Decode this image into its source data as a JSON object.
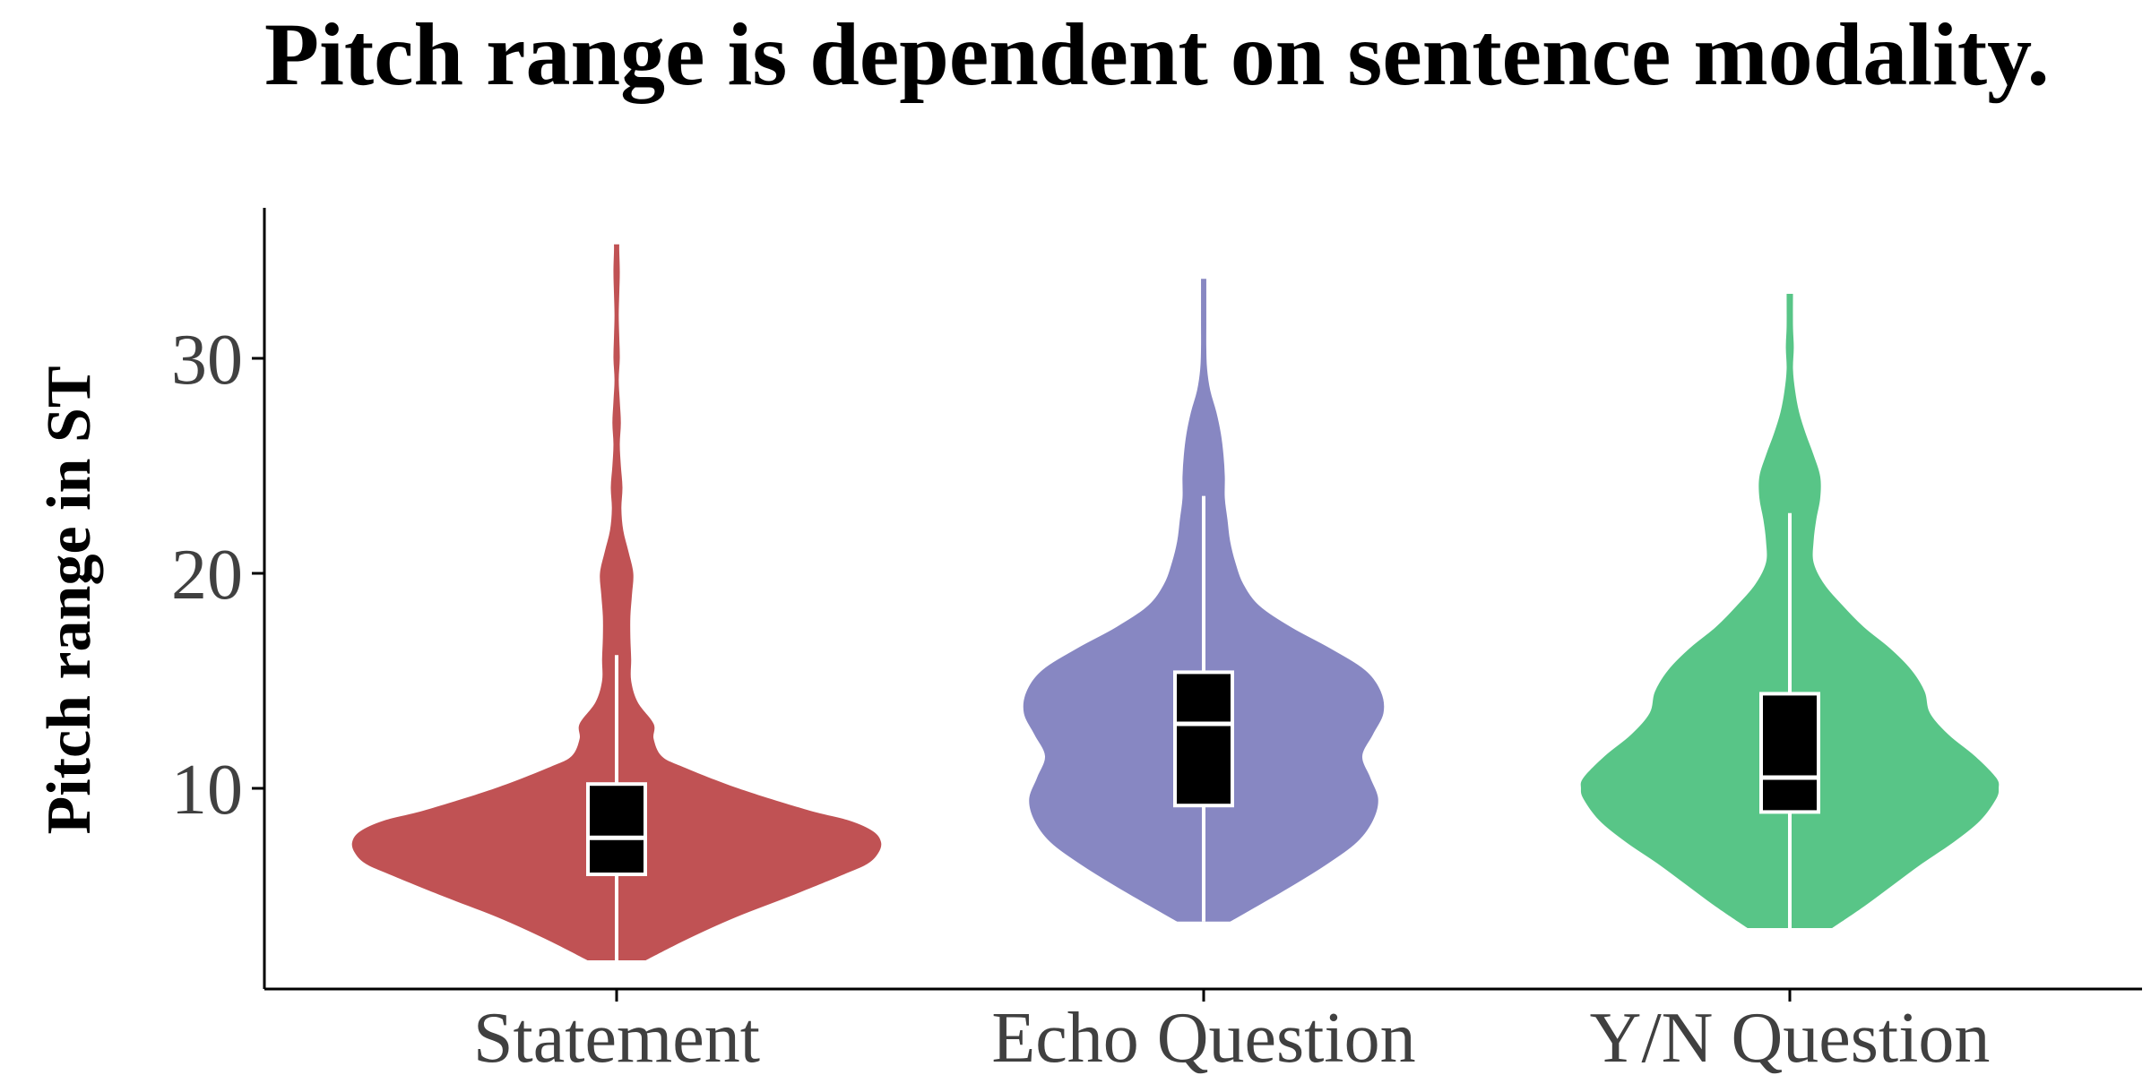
{
  "chart_data": {
    "type": "violin",
    "title": "Pitch range is dependent on sentence modality.",
    "xlabel": "",
    "ylabel": "Pitch range in ST",
    "ylim": [
      0,
      36
    ],
    "yticks": [
      10,
      20,
      30
    ],
    "grid": false,
    "legend": "none",
    "categories": [
      "Statement",
      "Echo Question",
      "Y/N Question"
    ],
    "colors": [
      "#c05254",
      "#8787c2",
      "#58c587"
    ],
    "box_color": "#000000",
    "box_outline_color": "#ffffff",
    "groups": [
      {
        "name": "Statement",
        "box": {
          "whisker_low": 2.0,
          "q1": 6.0,
          "median": 7.7,
          "q3": 10.2,
          "whisker_high": 16.2
        },
        "range": [
          2.0,
          35.3
        ],
        "density": [
          [
            2.0,
            0.11
          ],
          [
            3.0,
            0.27
          ],
          [
            4.0,
            0.45
          ],
          [
            5.0,
            0.66
          ],
          [
            6.0,
            0.86
          ],
          [
            6.5,
            0.95
          ],
          [
            7.0,
            0.99
          ],
          [
            7.5,
            1.0
          ],
          [
            8.0,
            0.97
          ],
          [
            8.5,
            0.88
          ],
          [
            9.0,
            0.72
          ],
          [
            10.0,
            0.46
          ],
          [
            11.0,
            0.25
          ],
          [
            11.5,
            0.17
          ],
          [
            12.3,
            0.14
          ],
          [
            13.0,
            0.14
          ],
          [
            14.0,
            0.08
          ],
          [
            15.0,
            0.055
          ],
          [
            16.0,
            0.055
          ],
          [
            17.0,
            0.052
          ],
          [
            18.0,
            0.052
          ],
          [
            19.0,
            0.058
          ],
          [
            20.0,
            0.063
          ],
          [
            21.0,
            0.045
          ],
          [
            22.0,
            0.025
          ],
          [
            23.0,
            0.018
          ],
          [
            24.0,
            0.022
          ],
          [
            25.0,
            0.016
          ],
          [
            26.0,
            0.012
          ],
          [
            27.0,
            0.016
          ],
          [
            28.0,
            0.012
          ],
          [
            29.0,
            0.008
          ],
          [
            30.0,
            0.012
          ],
          [
            31.0,
            0.01
          ],
          [
            32.0,
            0.008
          ],
          [
            33.0,
            0.01
          ],
          [
            34.0,
            0.012
          ],
          [
            35.0,
            0.01
          ],
          [
            35.3,
            0.01
          ]
        ]
      },
      {
        "name": "Echo Question",
        "box": {
          "whisker_low": 3.8,
          "q1": 9.2,
          "median": 13.0,
          "q3": 15.4,
          "whisker_high": 23.6
        },
        "range": [
          3.8,
          33.7
        ],
        "density": [
          [
            3.8,
            0.1
          ],
          [
            4.5,
            0.2
          ],
          [
            5.5,
            0.34
          ],
          [
            6.5,
            0.47
          ],
          [
            7.5,
            0.58
          ],
          [
            8.5,
            0.64
          ],
          [
            9.5,
            0.66
          ],
          [
            10.5,
            0.63
          ],
          [
            11.5,
            0.6
          ],
          [
            12.5,
            0.64
          ],
          [
            13.5,
            0.68
          ],
          [
            14.5,
            0.67
          ],
          [
            15.5,
            0.61
          ],
          [
            16.5,
            0.48
          ],
          [
            17.5,
            0.33
          ],
          [
            18.5,
            0.21
          ],
          [
            19.5,
            0.15
          ],
          [
            20.5,
            0.12
          ],
          [
            21.5,
            0.1
          ],
          [
            22.5,
            0.09
          ],
          [
            23.5,
            0.08
          ],
          [
            24.5,
            0.08
          ],
          [
            25.5,
            0.075
          ],
          [
            26.5,
            0.065
          ],
          [
            27.5,
            0.048
          ],
          [
            28.5,
            0.025
          ],
          [
            29.5,
            0.013
          ],
          [
            30.5,
            0.01
          ],
          [
            31.5,
            0.01
          ],
          [
            32.5,
            0.01
          ],
          [
            33.7,
            0.01
          ]
        ]
      },
      {
        "name": "Y/N Question",
        "box": {
          "whisker_low": 3.5,
          "q1": 8.9,
          "median": 10.5,
          "q3": 14.4,
          "whisker_high": 22.8
        },
        "range": [
          3.5,
          33.0
        ],
        "density": [
          [
            3.5,
            0.16
          ],
          [
            4.5,
            0.28
          ],
          [
            5.5,
            0.39
          ],
          [
            6.5,
            0.5
          ],
          [
            7.5,
            0.62
          ],
          [
            8.5,
            0.72
          ],
          [
            9.5,
            0.78
          ],
          [
            10.0,
            0.79
          ],
          [
            10.5,
            0.78
          ],
          [
            11.5,
            0.7
          ],
          [
            12.5,
            0.6
          ],
          [
            13.5,
            0.53
          ],
          [
            14.5,
            0.51
          ],
          [
            15.5,
            0.46
          ],
          [
            16.5,
            0.38
          ],
          [
            17.5,
            0.28
          ],
          [
            18.5,
            0.2
          ],
          [
            19.5,
            0.13
          ],
          [
            20.5,
            0.09
          ],
          [
            21.5,
            0.09
          ],
          [
            22.5,
            0.1
          ],
          [
            23.5,
            0.115
          ],
          [
            24.5,
            0.115
          ],
          [
            25.5,
            0.09
          ],
          [
            26.5,
            0.06
          ],
          [
            27.5,
            0.035
          ],
          [
            28.5,
            0.02
          ],
          [
            29.5,
            0.012
          ],
          [
            30.5,
            0.015
          ],
          [
            31.5,
            0.012
          ],
          [
            33.0,
            0.012
          ]
        ]
      }
    ]
  }
}
